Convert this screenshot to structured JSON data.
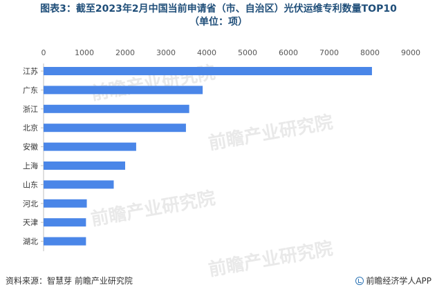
{
  "page": {
    "title_line1": "图表3：截至2023年2月中国当前申请省（市、自治区）光伏运维专利数量TOP10",
    "title_line2": "（单位：项）",
    "source": "资料来源：智慧芽 前瞻产业研究院",
    "brand": "前瞻经济学人APP",
    "brand_icon": "qianzhan-logo-icon",
    "watermark": "前瞻产业研究院"
  },
  "colors": {
    "bar": "#4a86e8",
    "title": "#1f4e79"
  },
  "chart_data": {
    "type": "bar",
    "orientation": "horizontal",
    "title": "图表3：截至2023年2月中国当前申请省（市、自治区）光伏运维专利数量TOP10（单位：项）",
    "categories": [
      "江苏",
      "广东",
      "浙江",
      "北京",
      "安徽",
      "上海",
      "山东",
      "河北",
      "天津",
      "湖北"
    ],
    "values": [
      8050,
      3900,
      3570,
      3490,
      2270,
      2000,
      1720,
      1060,
      1040,
      1040
    ],
    "xlim": [
      0,
      9000
    ],
    "xticks": [
      0,
      1000,
      2000,
      3000,
      4000,
      5000,
      6000,
      7000,
      8000,
      9000
    ],
    "xaxis_position": "top",
    "grid": false,
    "legend": "none"
  }
}
